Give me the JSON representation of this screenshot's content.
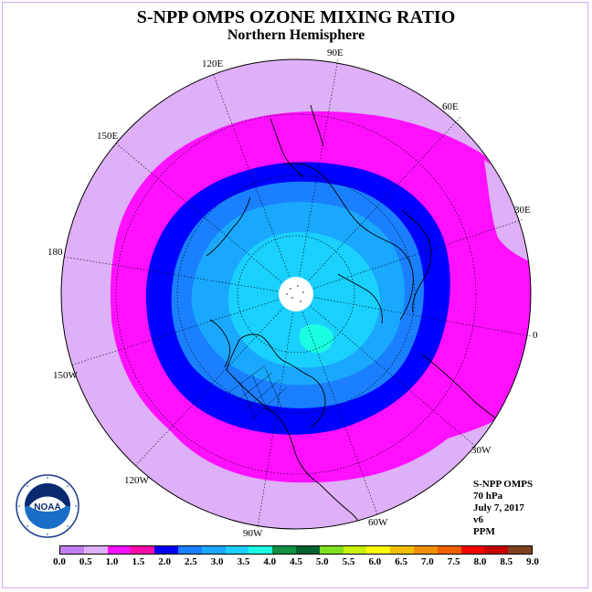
{
  "title": "S-NPP OMPS OZONE MIXING RATIO",
  "subtitle": "Northern Hemisphere",
  "map": {
    "projection": "north-polar-stereographic",
    "center_missing_data": true,
    "longitude_labels": [
      "90E",
      "60E",
      "30E",
      "0",
      "30W",
      "60W",
      "90W",
      "120W",
      "150W",
      "180",
      "150E",
      "120E"
    ],
    "field_levels_ppm": [
      1.0,
      1.5,
      2.0,
      2.5,
      3.0,
      3.5,
      4.0
    ]
  },
  "info": {
    "instrument": "S-NPP OMPS",
    "level": "70 hPa",
    "date": "July 7, 2017",
    "version": "v6",
    "units": "PPM"
  },
  "logo": {
    "text": "NOAA",
    "ring_text": "NATIONAL OCEANIC AND ATMOSPHERIC ADMINISTRATION",
    "bottom_text": "U.S. DEPARTMENT OF COMMERCE"
  },
  "colorbar": {
    "colors": [
      "#c07ef0",
      "#ddb0f8",
      "#ff10ff",
      "#ff0aa8",
      "#0000ff",
      "#1a80ff",
      "#1aa8ff",
      "#1ad0ff",
      "#1affe0",
      "#109040",
      "#006030",
      "#80e020",
      "#c8f000",
      "#ffff00",
      "#f0c000",
      "#f09000",
      "#f06000",
      "#ff0000",
      "#c80000",
      "#804020"
    ],
    "ticks": [
      "0.0",
      "0.5",
      "1.0",
      "1.5",
      "2.0",
      "2.5",
      "3.0",
      "3.5",
      "4.0",
      "4.5",
      "5.0",
      "5.5",
      "6.0",
      "6.5",
      "7.0",
      "7.5",
      "8.0",
      "8.5",
      "9.0"
    ]
  }
}
